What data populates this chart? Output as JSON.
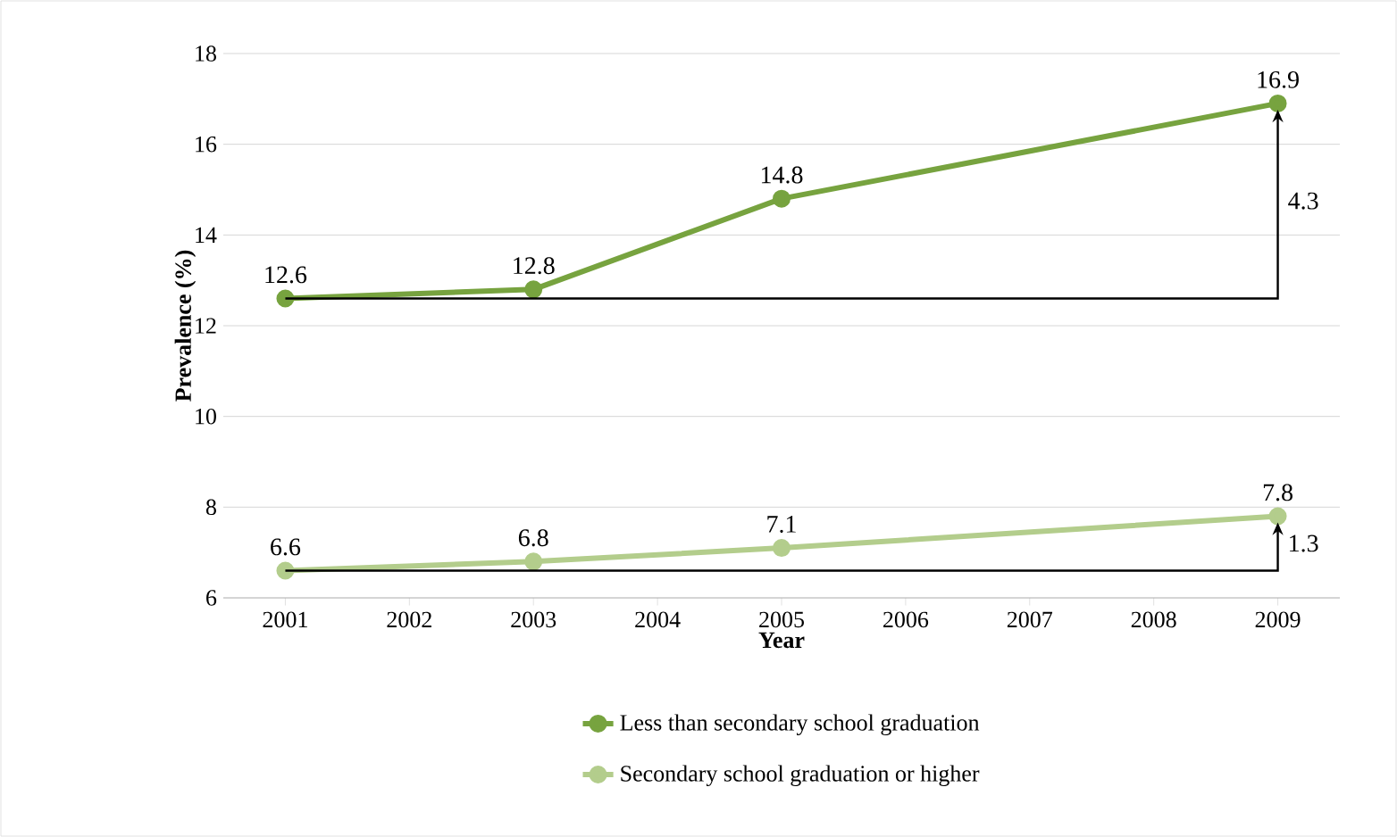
{
  "chart_data": {
    "type": "line",
    "xlabel": "Year",
    "ylabel": "Prevalence (%)",
    "xlim": [
      2000.5,
      2009.5
    ],
    "xticks": [
      2001,
      2002,
      2003,
      2004,
      2005,
      2006,
      2007,
      2008,
      2009
    ],
    "ylim": [
      6,
      18
    ],
    "yticks": [
      6,
      8,
      10,
      12,
      14,
      16,
      18
    ],
    "grid": "y",
    "legend": "bottom",
    "marker": "circle",
    "data_labels": true,
    "series": [
      {
        "name": "Less than secondary school graduation",
        "color": "#77a33f",
        "x": [
          2001,
          2003,
          2005,
          2009
        ],
        "values": [
          12.6,
          12.8,
          14.8,
          16.9
        ]
      },
      {
        "name": "Secondary school graduation or higher",
        "color": "#b3cd8c",
        "x": [
          2001,
          2003,
          2005,
          2009
        ],
        "values": [
          6.6,
          6.8,
          7.1,
          7.8
        ]
      }
    ],
    "annotations": [
      "4.3",
      "1.3"
    ]
  }
}
